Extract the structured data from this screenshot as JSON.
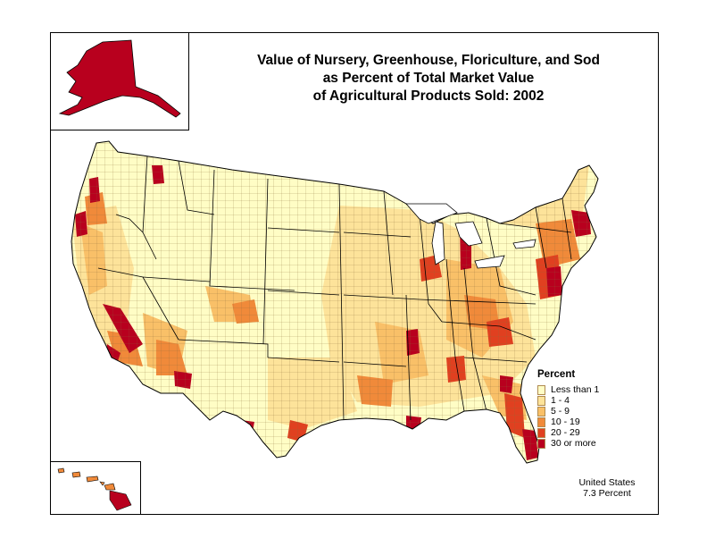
{
  "title": {
    "line1": "Value of Nursery, Greenhouse, Floriculture, and Sod",
    "line2": "as Percent of Total Market Value",
    "line3": "of Agricultural Products Sold:  2002"
  },
  "legend": {
    "title": "Percent",
    "classes": [
      {
        "label": "Less than 1",
        "color": "#fffdc5"
      },
      {
        "label": "1 - 4",
        "color": "#fde39a"
      },
      {
        "label": "5 - 9",
        "color": "#f9c068"
      },
      {
        "label": "10 - 19",
        "color": "#f08a3a"
      },
      {
        "label": "20 - 29",
        "color": "#e04020"
      },
      {
        "label": "30 or more",
        "color": "#b8001e"
      }
    ]
  },
  "summary": {
    "line1": "United States",
    "line2": "7.3 Percent"
  },
  "colors": {
    "county_border": "#8a6a3a",
    "state_border": "#000000"
  }
}
